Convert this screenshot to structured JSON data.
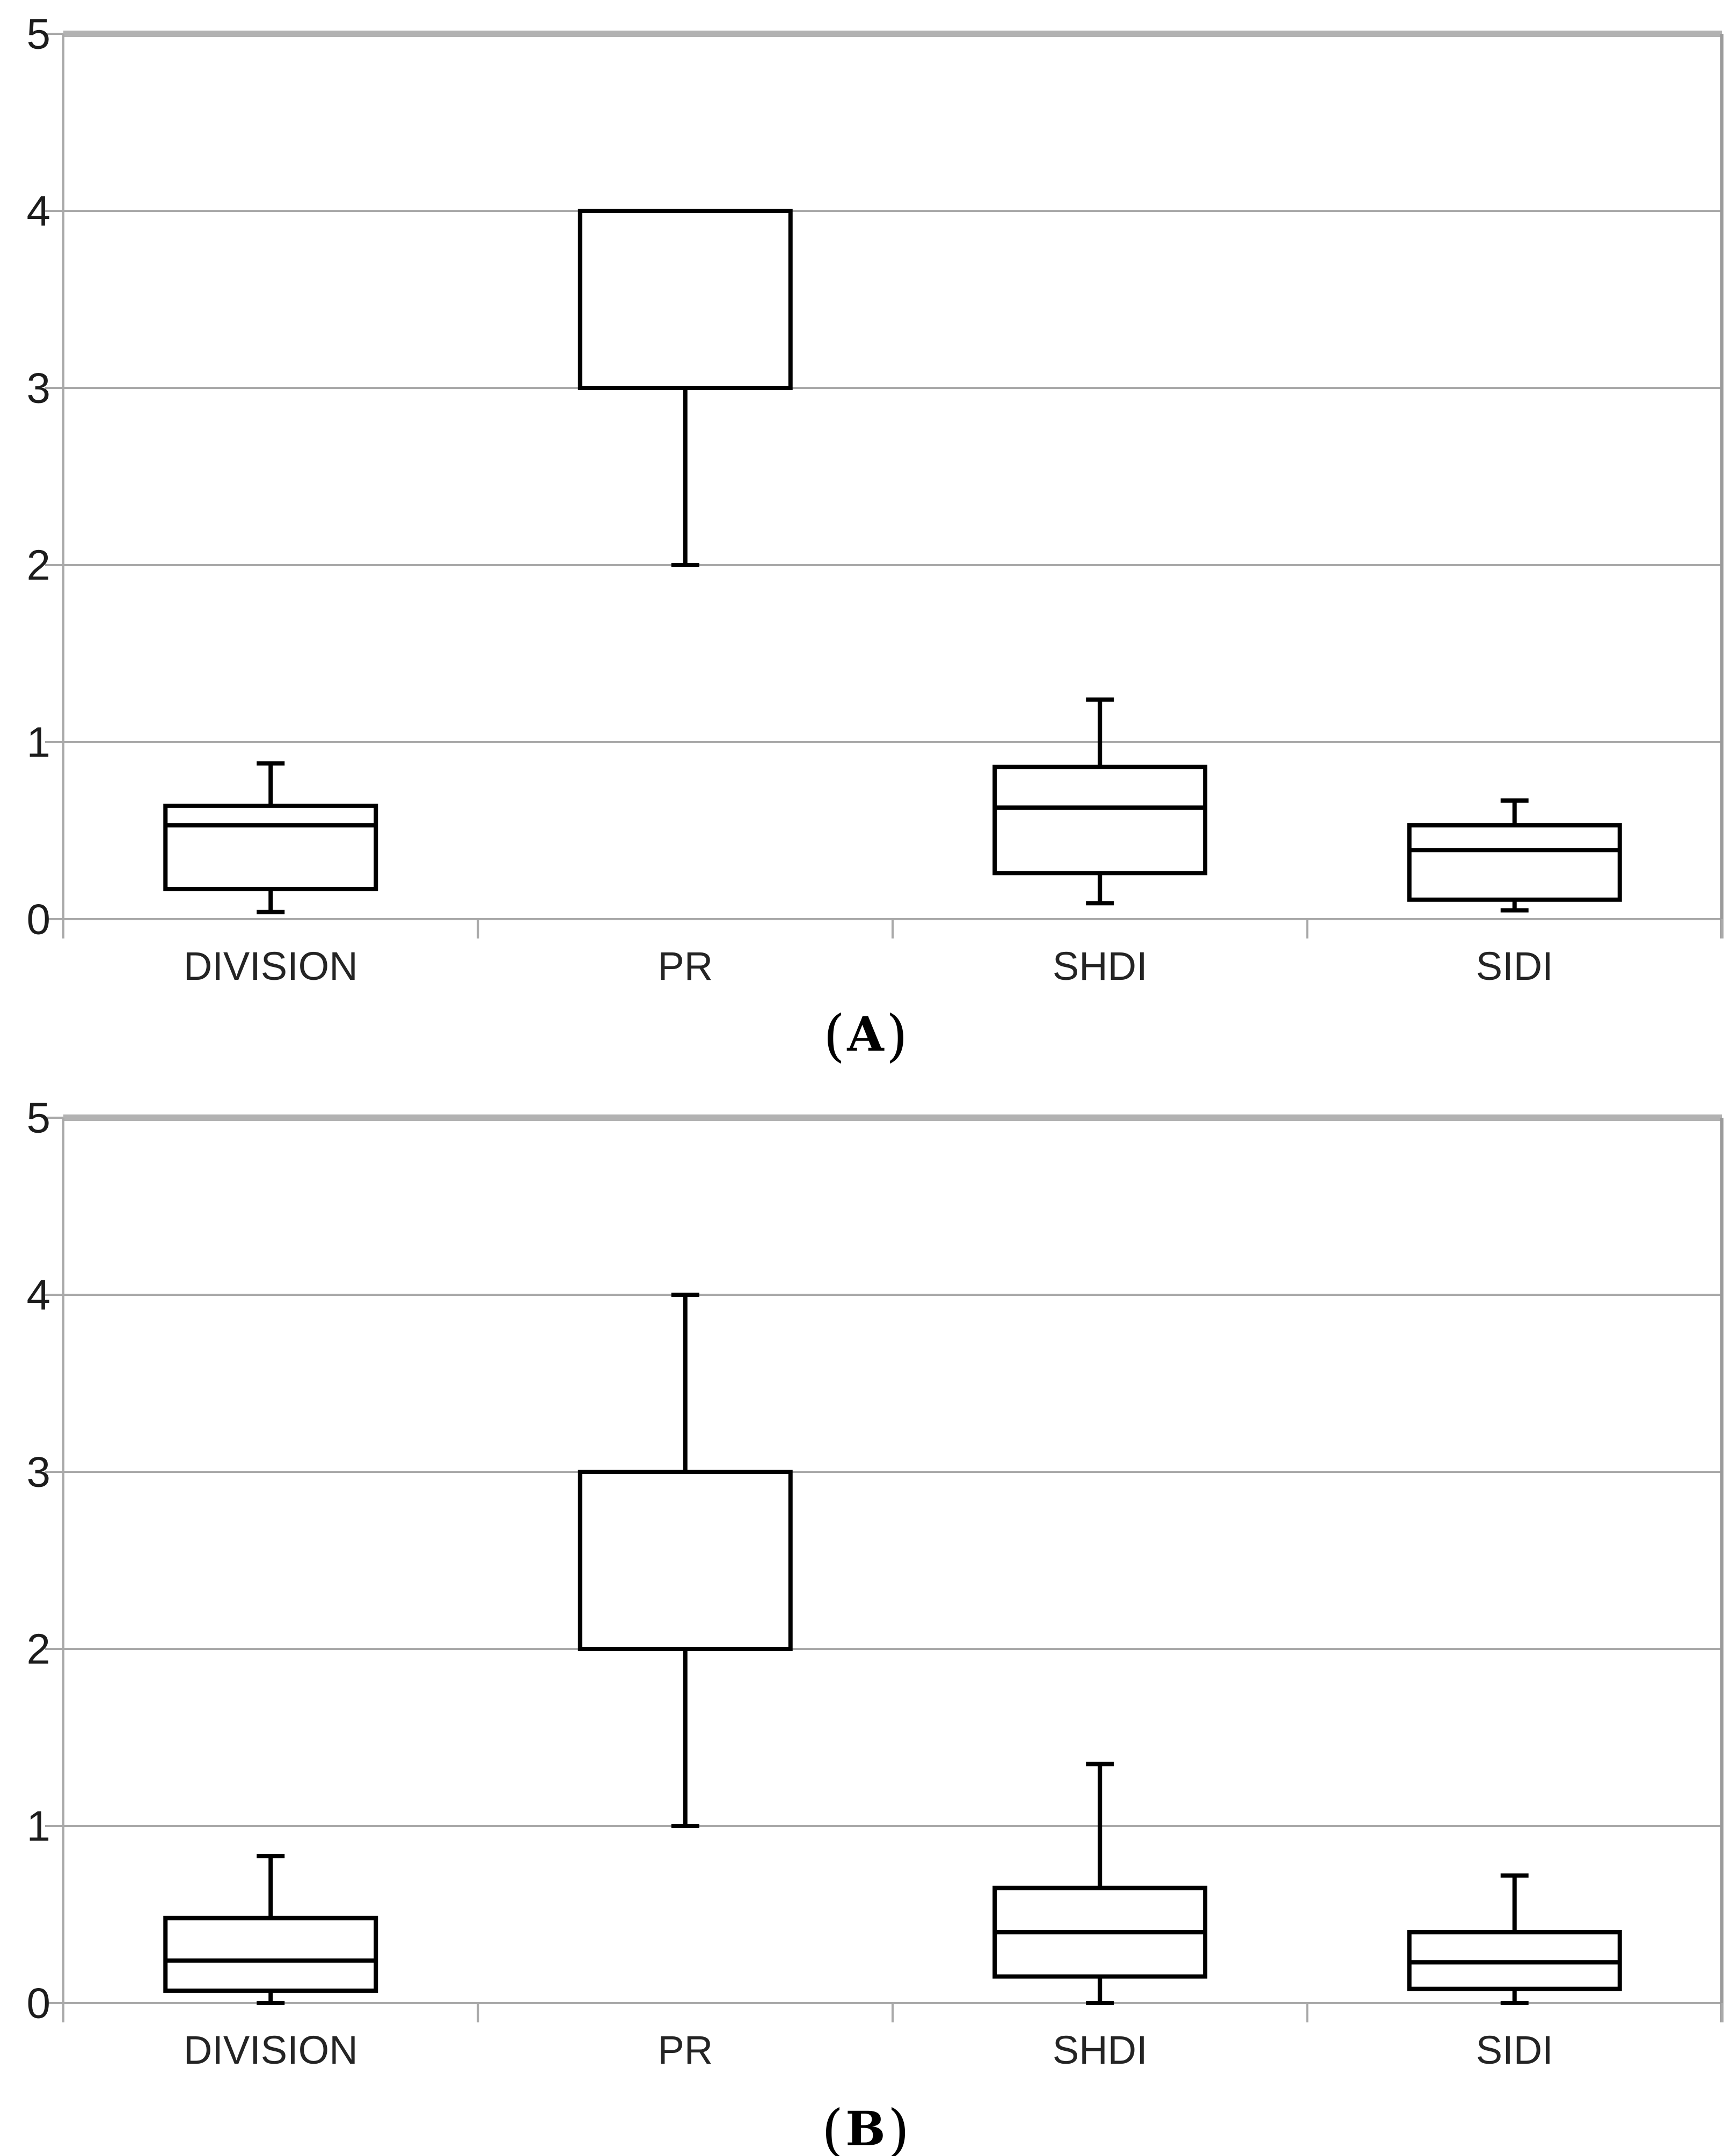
{
  "figure": {
    "background": "#ffffff",
    "panel_count": 2
  },
  "style": {
    "box_stroke_color": "#000000",
    "box_fill_color": "#ffffff",
    "gridline_color": "#a9a9a9",
    "top_border_color": "#b2b2b2",
    "right_border_color": "#9b9b9b",
    "axis_line_color": "#a9a9a9",
    "tick_label_color": "#1c1c1c",
    "category_label_color": "#242424"
  },
  "chart_data": [
    {
      "type": "box",
      "panel": "A",
      "caption": {
        "open": "(",
        "letter": "A",
        "close": ")"
      },
      "title": "",
      "xlabel": "",
      "ylabel": "",
      "ylim": [
        0,
        5
      ],
      "yticks": [
        "0",
        "1",
        "2",
        "3",
        "4",
        "5"
      ],
      "grid": "horizontal",
      "legend": "none",
      "categories": [
        "DIVISION",
        "PR",
        "SHDI",
        "SIDI"
      ],
      "series": [
        {
          "category": "DIVISION",
          "min": 0.04,
          "q1": 0.17,
          "median": 0.53,
          "q3": 0.64,
          "max": 0.88
        },
        {
          "category": "PR",
          "min": 2,
          "q1": 3,
          "median": null,
          "q3": 4,
          "max": 4
        },
        {
          "category": "SHDI",
          "min": 0.09,
          "q1": 0.26,
          "median": 0.63,
          "q3": 0.86,
          "max": 1.24
        },
        {
          "category": "SIDI",
          "min": 0.05,
          "q1": 0.11,
          "median": 0.39,
          "q3": 0.53,
          "max": 0.67
        }
      ]
    },
    {
      "type": "box",
      "panel": "B",
      "caption": {
        "open": "(",
        "letter": "B",
        "close": ")"
      },
      "title": "",
      "xlabel": "",
      "ylabel": "",
      "ylim": [
        0,
        5
      ],
      "yticks": [
        "0",
        "1",
        "2",
        "3",
        "4",
        "5"
      ],
      "grid": "horizontal",
      "legend": "none",
      "categories": [
        "DIVISION",
        "PR",
        "SHDI",
        "SIDI"
      ],
      "series": [
        {
          "category": "DIVISION",
          "min": 0.0,
          "q1": 0.07,
          "median": 0.24,
          "q3": 0.48,
          "max": 0.83
        },
        {
          "category": "PR",
          "min": 1,
          "q1": 2,
          "median": null,
          "q3": 3,
          "max": 4
        },
        {
          "category": "SHDI",
          "min": 0.0,
          "q1": 0.15,
          "median": 0.4,
          "q3": 0.65,
          "max": 1.35
        },
        {
          "category": "SIDI",
          "min": 0.0,
          "q1": 0.08,
          "median": 0.23,
          "q3": 0.4,
          "max": 0.72
        }
      ]
    }
  ]
}
